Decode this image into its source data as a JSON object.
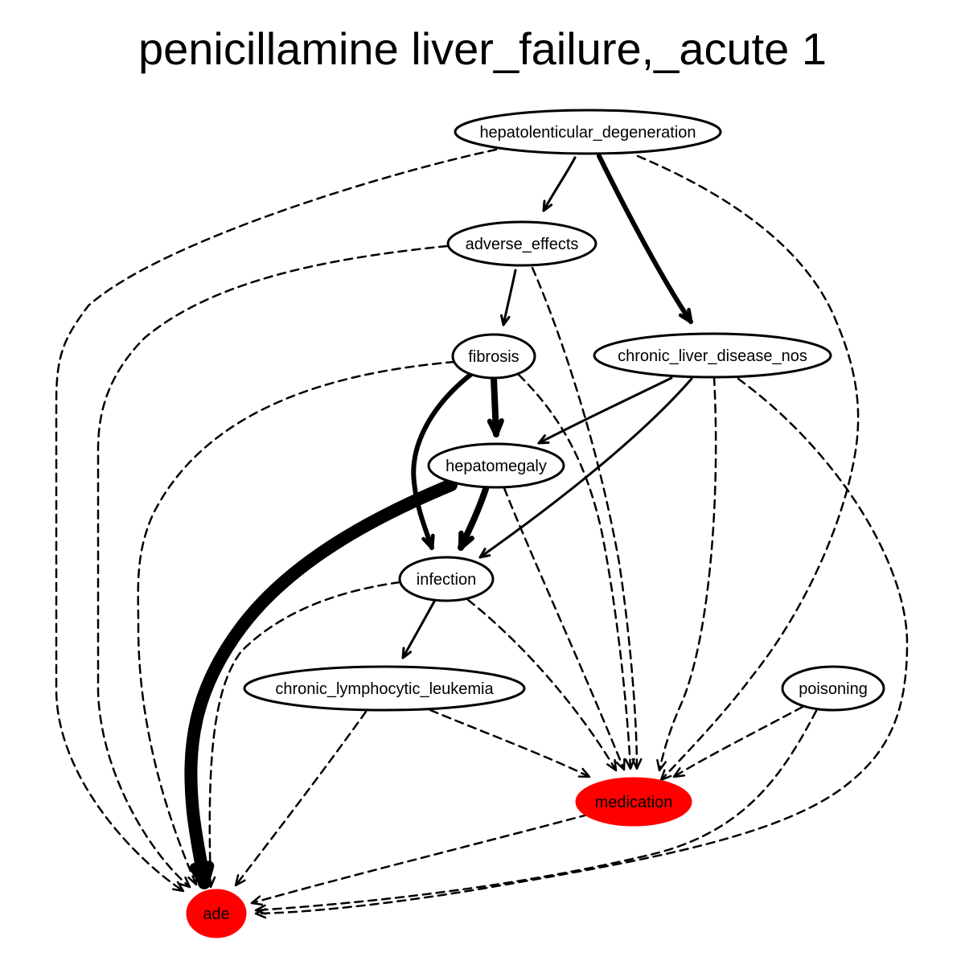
{
  "title": "penicillamine liver_failure,_acute 1",
  "colors": {
    "background": "#ffffff",
    "node_default": "#ffffff",
    "node_highlight": "#ff0000",
    "stroke": "#000000"
  },
  "nodes": [
    {
      "id": "hepatolenticular_degeneration",
      "label": "hepatolenticular_degeneration",
      "highlight": false
    },
    {
      "id": "adverse_effects",
      "label": "adverse_effects",
      "highlight": false
    },
    {
      "id": "fibrosis",
      "label": "fibrosis",
      "highlight": false
    },
    {
      "id": "chronic_liver_disease_nos",
      "label": "chronic_liver_disease_nos",
      "highlight": false
    },
    {
      "id": "hepatomegaly",
      "label": "hepatomegaly",
      "highlight": false
    },
    {
      "id": "infection",
      "label": "infection",
      "highlight": false
    },
    {
      "id": "chronic_lymphocytic_leukemia",
      "label": "chronic_lymphocytic_leukemia",
      "highlight": false
    },
    {
      "id": "poisoning",
      "label": "poisoning",
      "highlight": false
    },
    {
      "id": "medication",
      "label": "medication",
      "highlight": true
    },
    {
      "id": "ade",
      "label": "ade",
      "highlight": true
    }
  ],
  "edges": [
    {
      "from": "hepatolenticular_degeneration",
      "to": "adverse_effects",
      "style": "solid",
      "weight": 1
    },
    {
      "from": "hepatolenticular_degeneration",
      "to": "chronic_liver_disease_nos",
      "style": "solid",
      "weight": 2
    },
    {
      "from": "hepatolenticular_degeneration",
      "to": "ade",
      "style": "dashed",
      "weight": 1
    },
    {
      "from": "hepatolenticular_degeneration",
      "to": "medication",
      "style": "dashed",
      "weight": 1
    },
    {
      "from": "adverse_effects",
      "to": "fibrosis",
      "style": "solid",
      "weight": 1
    },
    {
      "from": "adverse_effects",
      "to": "ade",
      "style": "dashed",
      "weight": 1
    },
    {
      "from": "adverse_effects",
      "to": "medication",
      "style": "dashed",
      "weight": 1
    },
    {
      "from": "fibrosis",
      "to": "hepatomegaly",
      "style": "solid",
      "weight": 3
    },
    {
      "from": "fibrosis",
      "to": "infection",
      "style": "solid",
      "weight": 2
    },
    {
      "from": "fibrosis",
      "to": "ade",
      "style": "dashed",
      "weight": 1
    },
    {
      "from": "fibrosis",
      "to": "medication",
      "style": "dashed",
      "weight": 1
    },
    {
      "from": "chronic_liver_disease_nos",
      "to": "hepatomegaly",
      "style": "solid",
      "weight": 1
    },
    {
      "from": "chronic_liver_disease_nos",
      "to": "infection",
      "style": "solid",
      "weight": 1
    },
    {
      "from": "chronic_liver_disease_nos",
      "to": "medication",
      "style": "dashed",
      "weight": 1
    },
    {
      "from": "chronic_liver_disease_nos",
      "to": "ade",
      "style": "dashed",
      "weight": 1
    },
    {
      "from": "hepatomegaly",
      "to": "infection",
      "style": "solid",
      "weight": 3
    },
    {
      "from": "hepatomegaly",
      "to": "ade",
      "style": "solid",
      "weight": 5
    },
    {
      "from": "hepatomegaly",
      "to": "medication",
      "style": "dashed",
      "weight": 1
    },
    {
      "from": "infection",
      "to": "chronic_lymphocytic_leukemia",
      "style": "solid",
      "weight": 1
    },
    {
      "from": "infection",
      "to": "ade",
      "style": "dashed",
      "weight": 1
    },
    {
      "from": "infection",
      "to": "medication",
      "style": "dashed",
      "weight": 1
    },
    {
      "from": "chronic_lymphocytic_leukemia",
      "to": "medication",
      "style": "dashed",
      "weight": 1
    },
    {
      "from": "chronic_lymphocytic_leukemia",
      "to": "ade",
      "style": "dashed",
      "weight": 1
    },
    {
      "from": "poisoning",
      "to": "medication",
      "style": "dashed",
      "weight": 1
    },
    {
      "from": "poisoning",
      "to": "ade",
      "style": "dashed",
      "weight": 1
    },
    {
      "from": "medication",
      "to": "ade",
      "style": "dashed",
      "weight": 1
    }
  ]
}
